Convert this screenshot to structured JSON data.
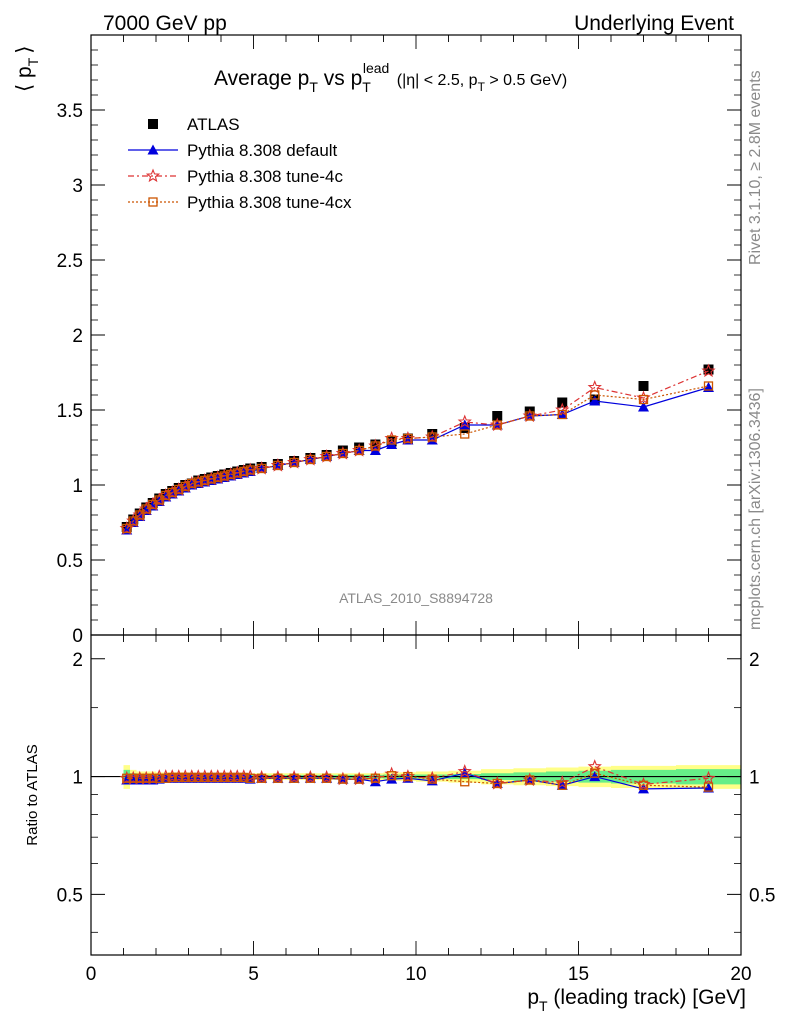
{
  "header": {
    "left": "7000 GeV pp",
    "right": "Underlying Event"
  },
  "side_labels": {
    "rivet": "Rivet 3.1.10, ≥ 2.8M events",
    "mcplots": "mcplots.cern.ch [arXiv:1306.3436]"
  },
  "watermark": "ATLAS_2010_S8894728",
  "chart_data": [
    {
      "type": "scatter",
      "panel": "main",
      "title": "Average p_T vs p_T^lead (|η| < 2.5, p_T > 0.5 GeV)",
      "title_parts": {
        "a": "Average p",
        "a_sub": "T",
        "b": " vs p",
        "b_sub": "T",
        "b_sup": "lead",
        "c": " (|η| < 2.5, p",
        "c_sub": "T",
        "d": " > 0.5 GeV)"
      },
      "ylabel_parts": {
        "open": "⟨ p",
        "sub": "T",
        "close": "⟩"
      },
      "xlim": [
        0,
        20
      ],
      "ylim": [
        0,
        4
      ],
      "yticks": [
        0,
        0.5,
        1,
        1.5,
        2,
        2.5,
        3,
        3.5
      ],
      "ytick_labels": [
        "0",
        "0.5",
        "1",
        "1.5",
        "2",
        "2.5",
        "3",
        "3.5"
      ],
      "legend_position": "top-left",
      "series": [
        {
          "name": "ATLAS",
          "marker": "square",
          "color": "#000000",
          "x": [
            1.1,
            1.3,
            1.5,
            1.7,
            1.9,
            2.1,
            2.3,
            2.5,
            2.7,
            2.9,
            3.1,
            3.3,
            3.5,
            3.7,
            3.9,
            4.1,
            4.3,
            4.5,
            4.7,
            4.9,
            5.25,
            5.75,
            6.25,
            6.75,
            7.25,
            7.75,
            8.25,
            8.75,
            9.25,
            9.75,
            10.5,
            11.5,
            12.5,
            13.5,
            14.5,
            15.5,
            17,
            19
          ],
          "y": [
            0.72,
            0.77,
            0.81,
            0.85,
            0.88,
            0.91,
            0.94,
            0.96,
            0.98,
            1.0,
            1.01,
            1.03,
            1.04,
            1.05,
            1.06,
            1.07,
            1.08,
            1.09,
            1.1,
            1.11,
            1.12,
            1.14,
            1.16,
            1.18,
            1.2,
            1.23,
            1.25,
            1.27,
            1.29,
            1.31,
            1.34,
            1.38,
            1.46,
            1.49,
            1.55,
            1.57,
            1.66,
            1.77
          ]
        },
        {
          "name": "Pythia 8.308 default",
          "marker": "triangle",
          "color": "#0000dd",
          "x": [
            1.1,
            1.3,
            1.5,
            1.7,
            1.9,
            2.1,
            2.3,
            2.5,
            2.7,
            2.9,
            3.1,
            3.3,
            3.5,
            3.7,
            3.9,
            4.1,
            4.3,
            4.5,
            4.7,
            4.9,
            5.25,
            5.75,
            6.25,
            6.75,
            7.25,
            7.75,
            8.25,
            8.75,
            9.25,
            9.75,
            10.5,
            11.5,
            12.5,
            13.5,
            14.5,
            15.5,
            17,
            19
          ],
          "y": [
            0.7,
            0.75,
            0.79,
            0.83,
            0.86,
            0.89,
            0.92,
            0.94,
            0.96,
            0.98,
            1.0,
            1.01,
            1.02,
            1.03,
            1.04,
            1.05,
            1.06,
            1.07,
            1.08,
            1.09,
            1.11,
            1.13,
            1.15,
            1.17,
            1.19,
            1.21,
            1.23,
            1.23,
            1.27,
            1.3,
            1.3,
            1.4,
            1.4,
            1.46,
            1.47,
            1.56,
            1.52,
            1.65
          ]
        },
        {
          "name": "Pythia 8.308 tune-4c",
          "marker": "star",
          "color": "#dd3333",
          "x": [
            1.1,
            1.3,
            1.5,
            1.7,
            1.9,
            2.1,
            2.3,
            2.5,
            2.7,
            2.9,
            3.1,
            3.3,
            3.5,
            3.7,
            3.9,
            4.1,
            4.3,
            4.5,
            4.7,
            4.9,
            5.25,
            5.75,
            6.25,
            6.75,
            7.25,
            7.75,
            8.25,
            8.75,
            9.25,
            9.75,
            10.5,
            11.5,
            12.5,
            13.5,
            14.5,
            15.5,
            17,
            19
          ],
          "y": [
            0.71,
            0.76,
            0.8,
            0.84,
            0.87,
            0.9,
            0.93,
            0.95,
            0.97,
            0.99,
            1.01,
            1.02,
            1.03,
            1.04,
            1.05,
            1.06,
            1.07,
            1.08,
            1.09,
            1.1,
            1.11,
            1.13,
            1.15,
            1.17,
            1.19,
            1.21,
            1.23,
            1.26,
            1.31,
            1.31,
            1.32,
            1.42,
            1.4,
            1.46,
            1.5,
            1.65,
            1.58,
            1.76
          ]
        },
        {
          "name": "Pythia 8.308 tune-4cx",
          "marker": "open-square",
          "color": "#cc5500",
          "x": [
            1.1,
            1.3,
            1.5,
            1.7,
            1.9,
            2.1,
            2.3,
            2.5,
            2.7,
            2.9,
            3.1,
            3.3,
            3.5,
            3.7,
            3.9,
            4.1,
            4.3,
            4.5,
            4.7,
            4.9,
            5.25,
            5.75,
            6.25,
            6.75,
            7.25,
            7.75,
            8.25,
            8.75,
            9.25,
            9.75,
            10.5,
            11.5,
            12.5,
            13.5,
            14.5,
            15.5,
            17,
            19
          ],
          "y": [
            0.71,
            0.76,
            0.8,
            0.84,
            0.87,
            0.9,
            0.93,
            0.95,
            0.97,
            0.99,
            1.01,
            1.02,
            1.03,
            1.04,
            1.05,
            1.06,
            1.07,
            1.08,
            1.09,
            1.1,
            1.11,
            1.13,
            1.15,
            1.17,
            1.19,
            1.21,
            1.23,
            1.26,
            1.3,
            1.31,
            1.32,
            1.34,
            1.4,
            1.46,
            1.47,
            1.6,
            1.57,
            1.66
          ]
        }
      ]
    },
    {
      "type": "scatter",
      "panel": "ratio",
      "ylabel": "Ratio to ATLAS",
      "xlabel_parts": {
        "a": "p",
        "sub": "T",
        "b": " (leading track) [GeV]"
      },
      "xlim": [
        0,
        20
      ],
      "ylim": [
        0.35,
        2.3
      ],
      "y_scale": "log",
      "xticks": [
        0,
        5,
        10,
        15,
        20
      ],
      "xtick_labels": [
        "0",
        "5",
        "10",
        "15",
        "20"
      ],
      "yticks": [
        0.5,
        1,
        2
      ],
      "ytick_labels": [
        "0.5",
        "1",
        "2"
      ],
      "band_colors": {
        "inner": "#66ee88",
        "outer": "#ffff88"
      },
      "band_x": [
        1.0,
        1.2,
        1.4,
        2,
        3,
        4,
        5,
        6,
        7,
        8,
        9,
        10,
        11,
        12,
        13,
        14,
        15,
        16,
        18,
        20
      ],
      "band_inner": [
        0.04,
        0.02,
        0.015,
        0.012,
        0.01,
        0.01,
        0.01,
        0.01,
        0.01,
        0.01,
        0.012,
        0.012,
        0.015,
        0.02,
        0.025,
        0.03,
        0.035,
        0.04,
        0.045,
        0.05
      ],
      "band_outer": [
        0.07,
        0.04,
        0.03,
        0.025,
        0.02,
        0.02,
        0.02,
        0.02,
        0.02,
        0.02,
        0.025,
        0.03,
        0.035,
        0.045,
        0.05,
        0.055,
        0.06,
        0.065,
        0.07,
        0.075
      ],
      "series": [
        {
          "name": "Pythia 8.308 default",
          "marker": "triangle",
          "color": "#0000dd",
          "x": [
            1.1,
            1.3,
            1.5,
            1.7,
            1.9,
            2.1,
            2.3,
            2.5,
            2.7,
            2.9,
            3.1,
            3.3,
            3.5,
            3.7,
            3.9,
            4.1,
            4.3,
            4.5,
            4.7,
            4.9,
            5.25,
            5.75,
            6.25,
            6.75,
            7.25,
            7.75,
            8.25,
            8.75,
            9.25,
            9.75,
            10.5,
            11.5,
            12.5,
            13.5,
            14.5,
            15.5,
            17,
            19
          ],
          "y": [
            0.98,
            0.98,
            0.98,
            0.98,
            0.98,
            0.985,
            0.99,
            0.99,
            0.99,
            0.99,
            0.99,
            0.99,
            0.99,
            0.99,
            0.99,
            0.99,
            0.99,
            0.99,
            0.99,
            0.985,
            0.99,
            0.99,
            0.99,
            0.99,
            0.99,
            0.985,
            0.985,
            0.97,
            0.985,
            0.99,
            0.975,
            1.02,
            0.96,
            0.98,
            0.95,
            1.0,
            0.93,
            0.935
          ]
        },
        {
          "name": "Pythia 8.308 tune-4c",
          "marker": "star",
          "color": "#dd3333",
          "x": [
            1.1,
            1.3,
            1.5,
            1.7,
            1.9,
            2.1,
            2.3,
            2.5,
            2.7,
            2.9,
            3.1,
            3.3,
            3.5,
            3.7,
            3.9,
            4.1,
            4.3,
            4.5,
            4.7,
            4.9,
            5.25,
            5.75,
            6.25,
            6.75,
            7.25,
            7.75,
            8.25,
            8.75,
            9.25,
            9.75,
            10.5,
            11.5,
            12.5,
            13.5,
            14.5,
            15.5,
            17,
            19
          ],
          "y": [
            0.99,
            0.99,
            0.99,
            0.99,
            0.99,
            1.0,
            1.0,
            1.0,
            1.0,
            1.0,
            1.0,
            1.0,
            1.0,
            1.0,
            1.0,
            1.0,
            1.0,
            1.0,
            1.0,
            1.0,
            0.995,
            0.995,
            0.995,
            0.995,
            0.995,
            0.985,
            0.985,
            0.99,
            1.015,
            1.0,
            0.99,
            1.03,
            0.96,
            0.98,
            0.965,
            1.06,
            0.955,
            0.99
          ]
        },
        {
          "name": "Pythia 8.308 tune-4cx",
          "marker": "open-square",
          "color": "#cc5500",
          "x": [
            1.1,
            1.3,
            1.5,
            1.7,
            1.9,
            2.1,
            2.3,
            2.5,
            2.7,
            2.9,
            3.1,
            3.3,
            3.5,
            3.7,
            3.9,
            4.1,
            4.3,
            4.5,
            4.7,
            4.9,
            5.25,
            5.75,
            6.25,
            6.75,
            7.25,
            7.75,
            8.25,
            8.75,
            9.25,
            9.75,
            10.5,
            11.5,
            12.5,
            13.5,
            14.5,
            15.5,
            17,
            19
          ],
          "y": [
            0.99,
            0.99,
            0.99,
            0.99,
            0.99,
            0.99,
            0.99,
            0.995,
            0.995,
            0.995,
            0.995,
            0.995,
            0.995,
            0.995,
            0.995,
            0.995,
            0.995,
            0.995,
            0.995,
            0.99,
            0.99,
            0.99,
            0.99,
            0.99,
            0.99,
            0.985,
            0.985,
            0.99,
            1.005,
            1.0,
            0.985,
            0.97,
            0.96,
            0.98,
            0.95,
            1.02,
            0.95,
            0.94
          ]
        }
      ]
    }
  ]
}
